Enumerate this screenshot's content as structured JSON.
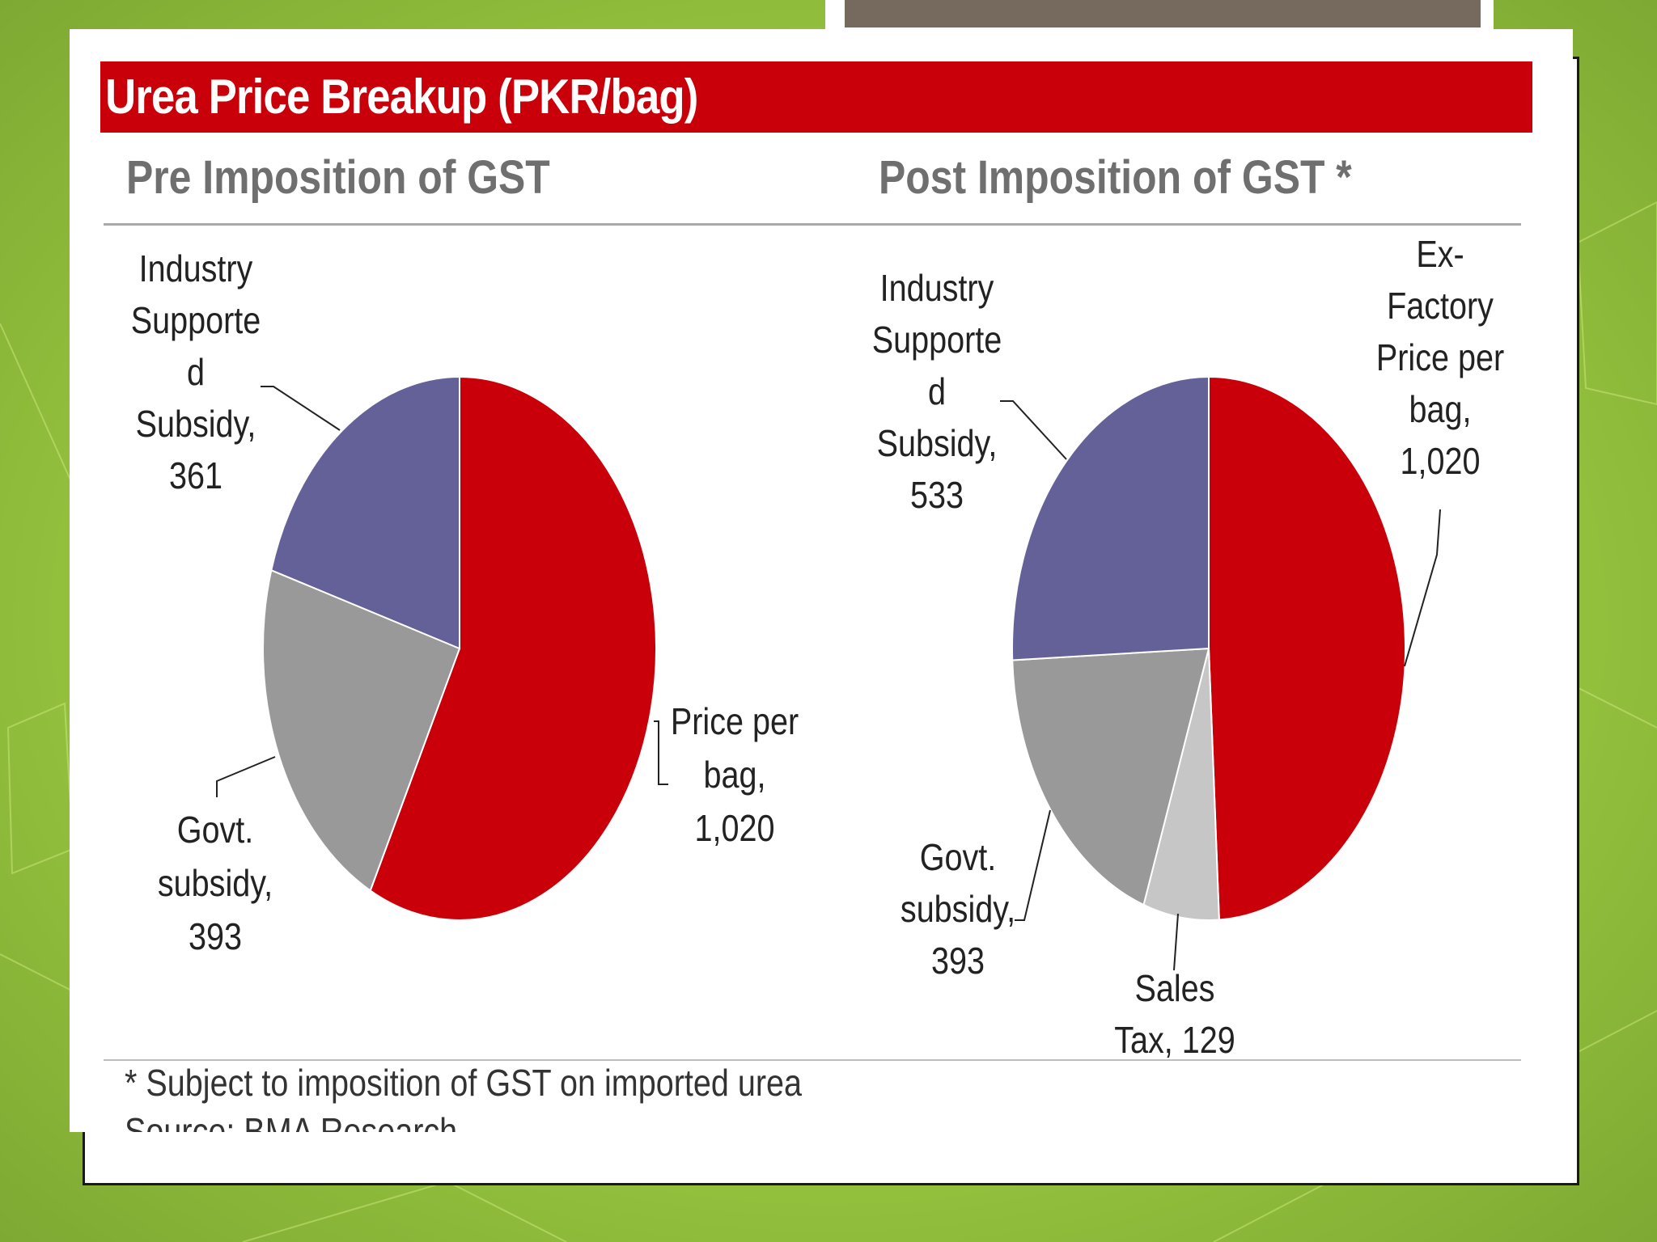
{
  "slide": {
    "title": "Urea Price Breakup (PKR/bag)",
    "footnote": "* Subject to imposition of GST on imported urea",
    "source": "Source: BMA Research"
  },
  "colors": {
    "title_bar": "#c9000a",
    "red": "#c9000a",
    "purple": "#646198",
    "gray": "#999999",
    "light_gray": "#c6c6c6",
    "background_green": "#98c63f"
  },
  "chart_data": [
    {
      "type": "pie",
      "title": "Pre Imposition of GST",
      "series": [
        {
          "name": "Price per bag",
          "value": 1020,
          "label_lines": [
            "Price per",
            "bag,",
            "1,020"
          ],
          "color": "#c9000a"
        },
        {
          "name": "Govt. subsidy",
          "value": 393,
          "label_lines": [
            "Govt.",
            "subsidy,",
            "393"
          ],
          "color": "#999999"
        },
        {
          "name": "Industry Supported Subsidy",
          "value": 361,
          "label_lines": [
            "Industry",
            "Supporte",
            "d",
            "Subsidy,",
            "361"
          ],
          "color": "#646198"
        }
      ]
    },
    {
      "type": "pie",
      "title": "Post Imposition of GST *",
      "series": [
        {
          "name": "Ex-Factory Price per bag",
          "value": 1020,
          "label_lines": [
            "Ex-",
            "Factory",
            "Price per",
            "bag,",
            "1,020"
          ],
          "color": "#c9000a"
        },
        {
          "name": "Sales Tax",
          "value": 129,
          "label_lines": [
            "Sales",
            "Tax,  129"
          ],
          "color": "#c6c6c6"
        },
        {
          "name": "Govt. subsidy",
          "value": 393,
          "label_lines": [
            "Govt.",
            "subsidy,",
            "393"
          ],
          "color": "#999999"
        },
        {
          "name": "Industry Supported Subsidy",
          "value": 533,
          "label_lines": [
            "Industry",
            "Supporte",
            "d",
            "Subsidy,",
            "533"
          ],
          "color": "#646198"
        }
      ]
    }
  ]
}
